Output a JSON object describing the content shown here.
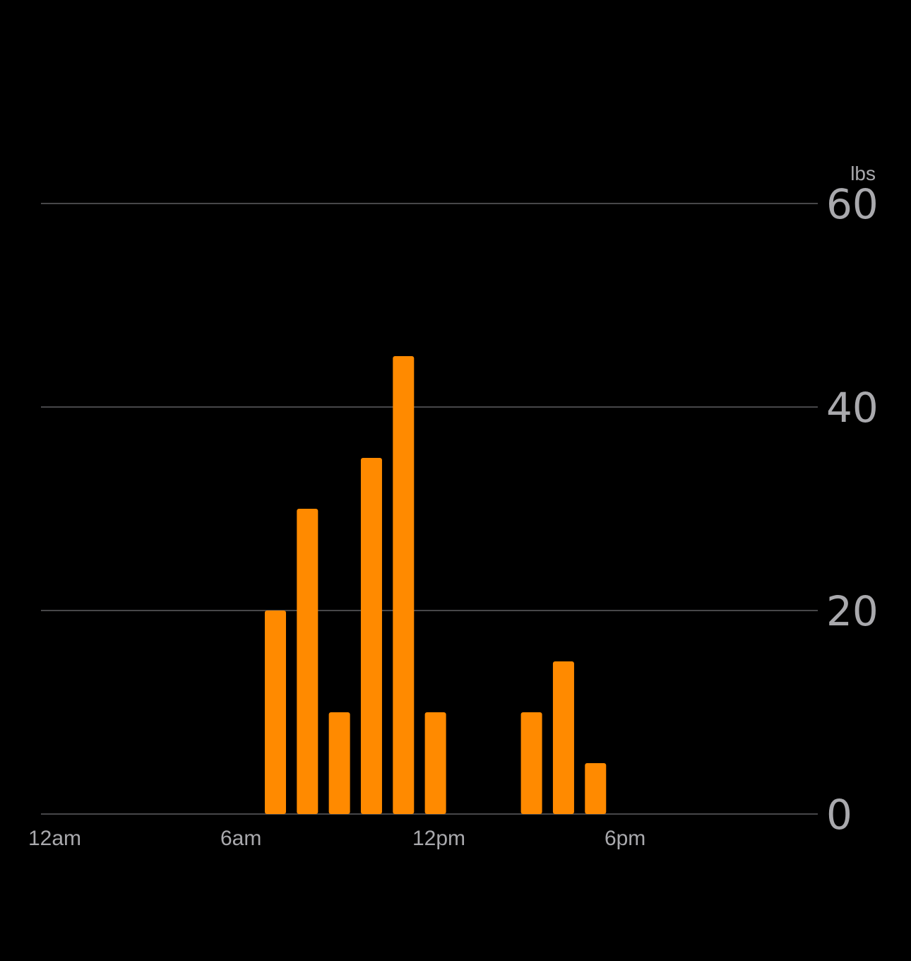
{
  "chart_data": {
    "type": "bar",
    "unit": "lbs",
    "x": [
      "7am",
      "8am",
      "9am",
      "10am",
      "11am",
      "12pm",
      "3pm",
      "4pm",
      "5pm"
    ],
    "values": [
      20,
      30,
      10,
      35,
      45,
      10,
      10,
      15,
      5
    ],
    "ylim": [
      0,
      60
    ],
    "y_ticks": [
      "0",
      "20",
      "40",
      "60"
    ],
    "x_ticks": [
      "12am",
      "6am",
      "12pm",
      "6pm"
    ],
    "grid": true,
    "legend": "none",
    "colors": {
      "bar": "#ff8a00",
      "background": "#000000",
      "gridline": "#474749",
      "text": "#a9a9ad"
    }
  }
}
